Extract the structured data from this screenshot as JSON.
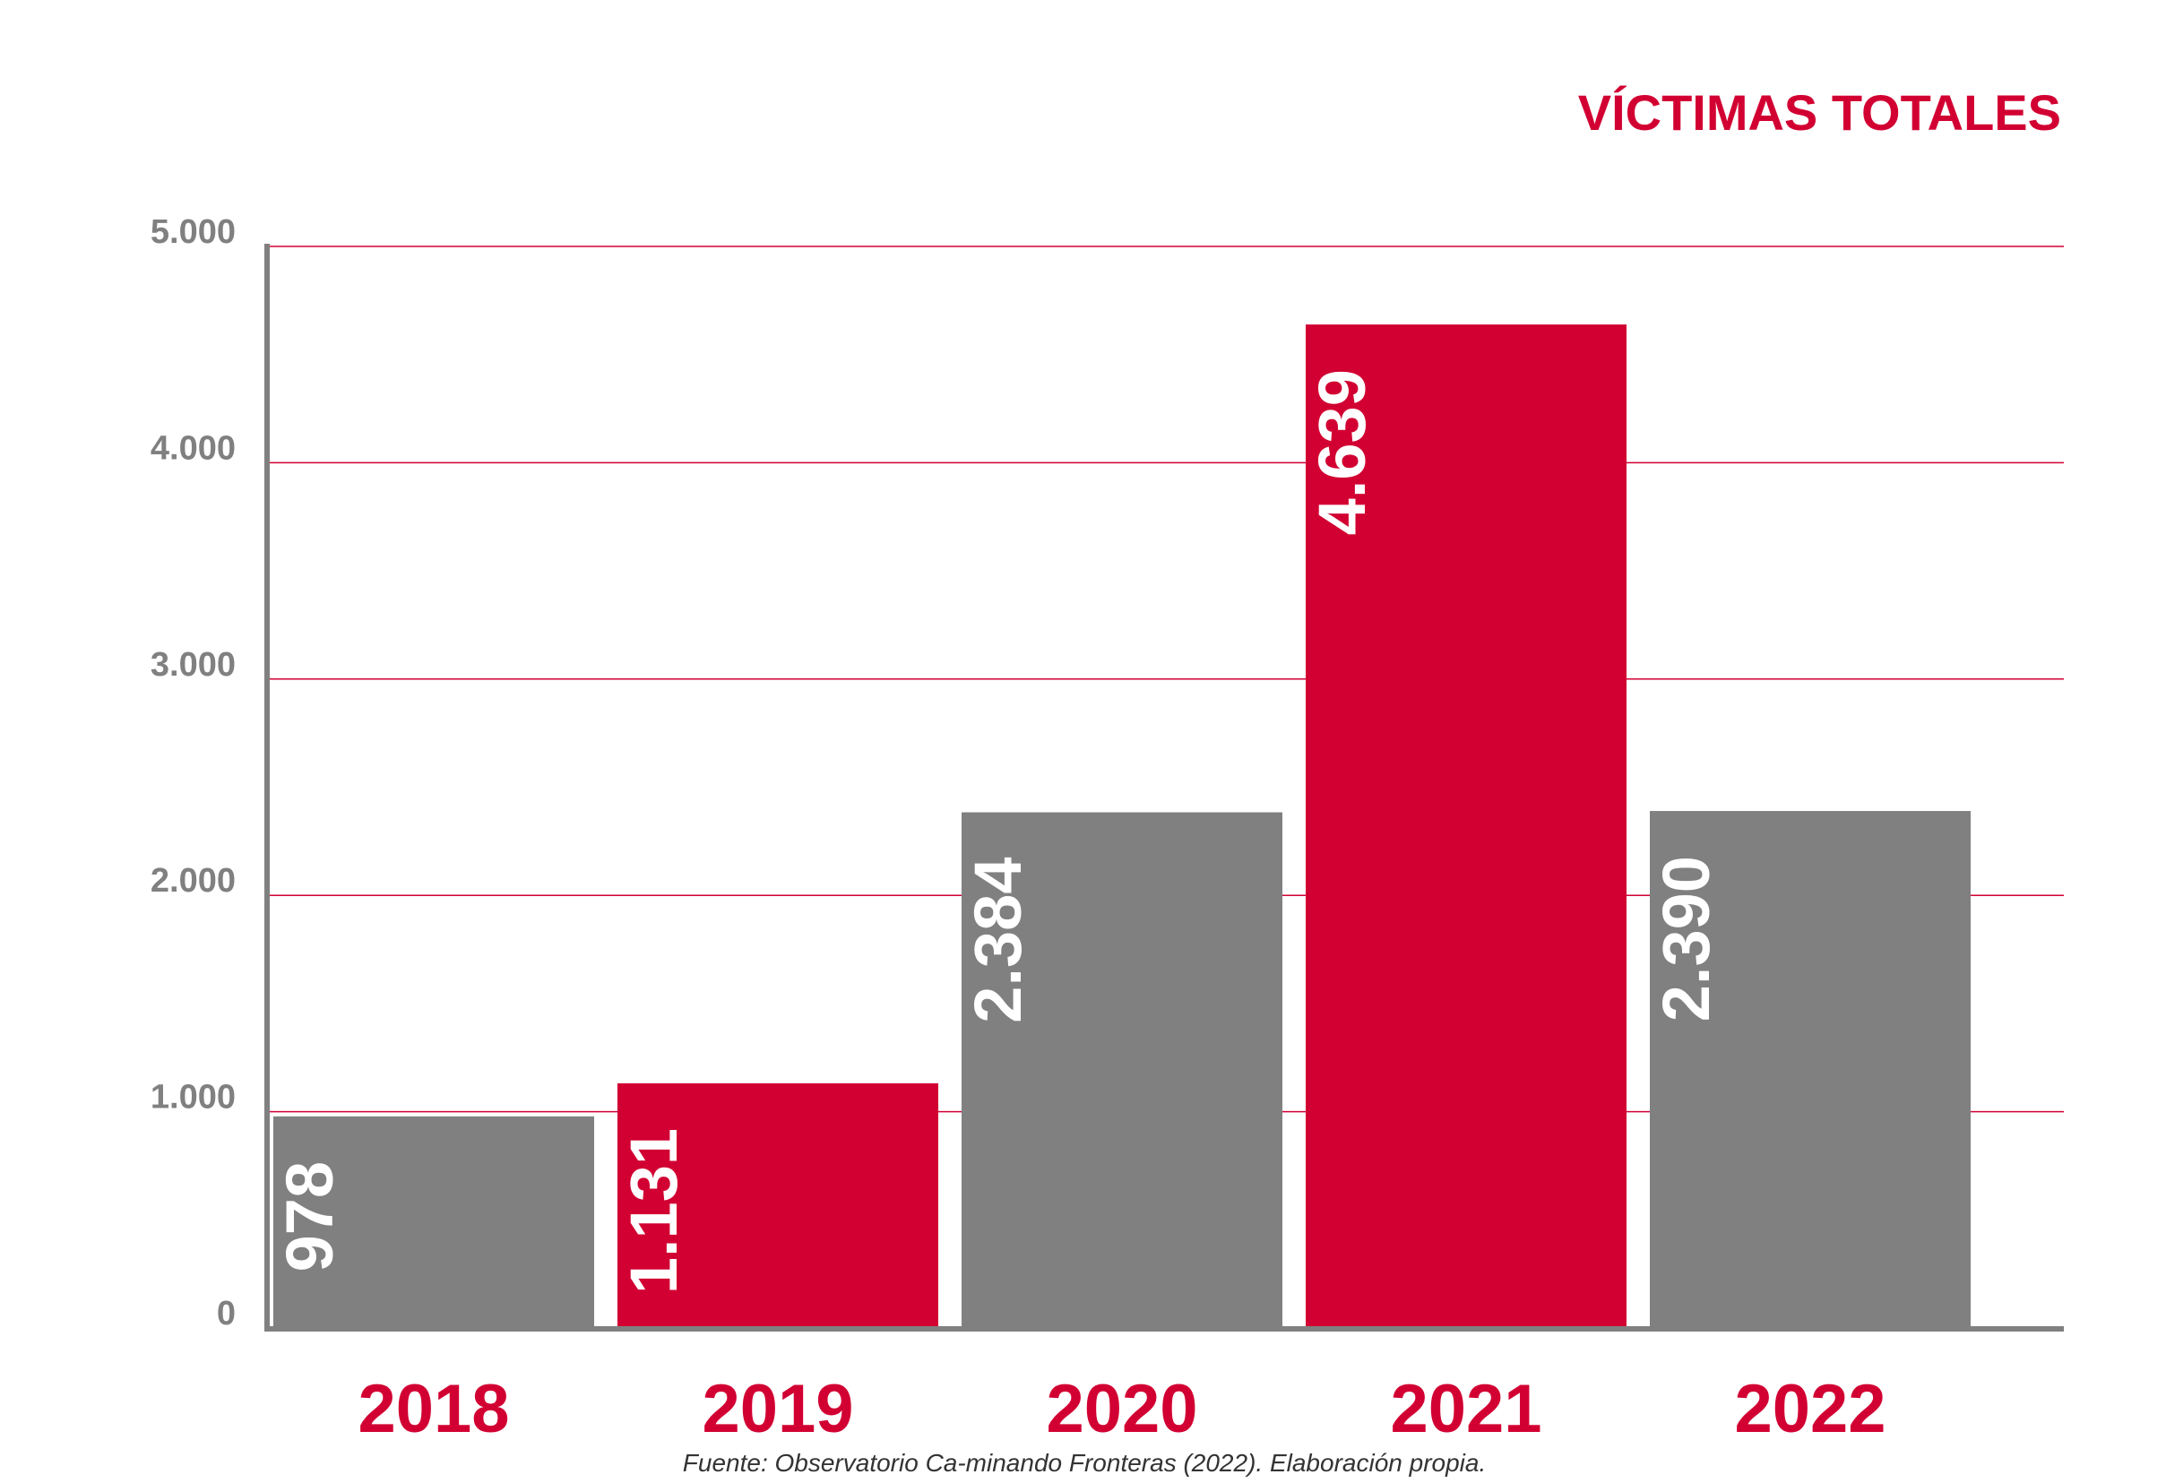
{
  "chart_data": {
    "type": "bar",
    "title": "VÍCTIMAS TOTALES",
    "xlabel": "",
    "ylabel": "",
    "categories": [
      "2018",
      "2019",
      "2020",
      "2021",
      "2022"
    ],
    "values": [
      978,
      1131,
      2384,
      4639,
      2390
    ],
    "value_labels": [
      "978",
      "1.131",
      "2.384",
      "4.639",
      "2.390"
    ],
    "bar_colors": [
      "#808080",
      "#d20032",
      "#808080",
      "#d20032",
      "#808080"
    ],
    "ylim": [
      0,
      5000
    ],
    "yticks": [
      0,
      1000,
      2000,
      3000,
      4000,
      5000
    ],
    "ytick_labels": [
      "0",
      "1.000",
      "2.000",
      "3.000",
      "4.000",
      "5.000"
    ],
    "grid": true,
    "grid_color": "#d20032",
    "legend": "none",
    "source": "Fuente: Observatorio Ca-minando Fronteras (2022). Elaboración propia."
  },
  "colors": {
    "accent": "#d20032",
    "gray": "#808080"
  }
}
